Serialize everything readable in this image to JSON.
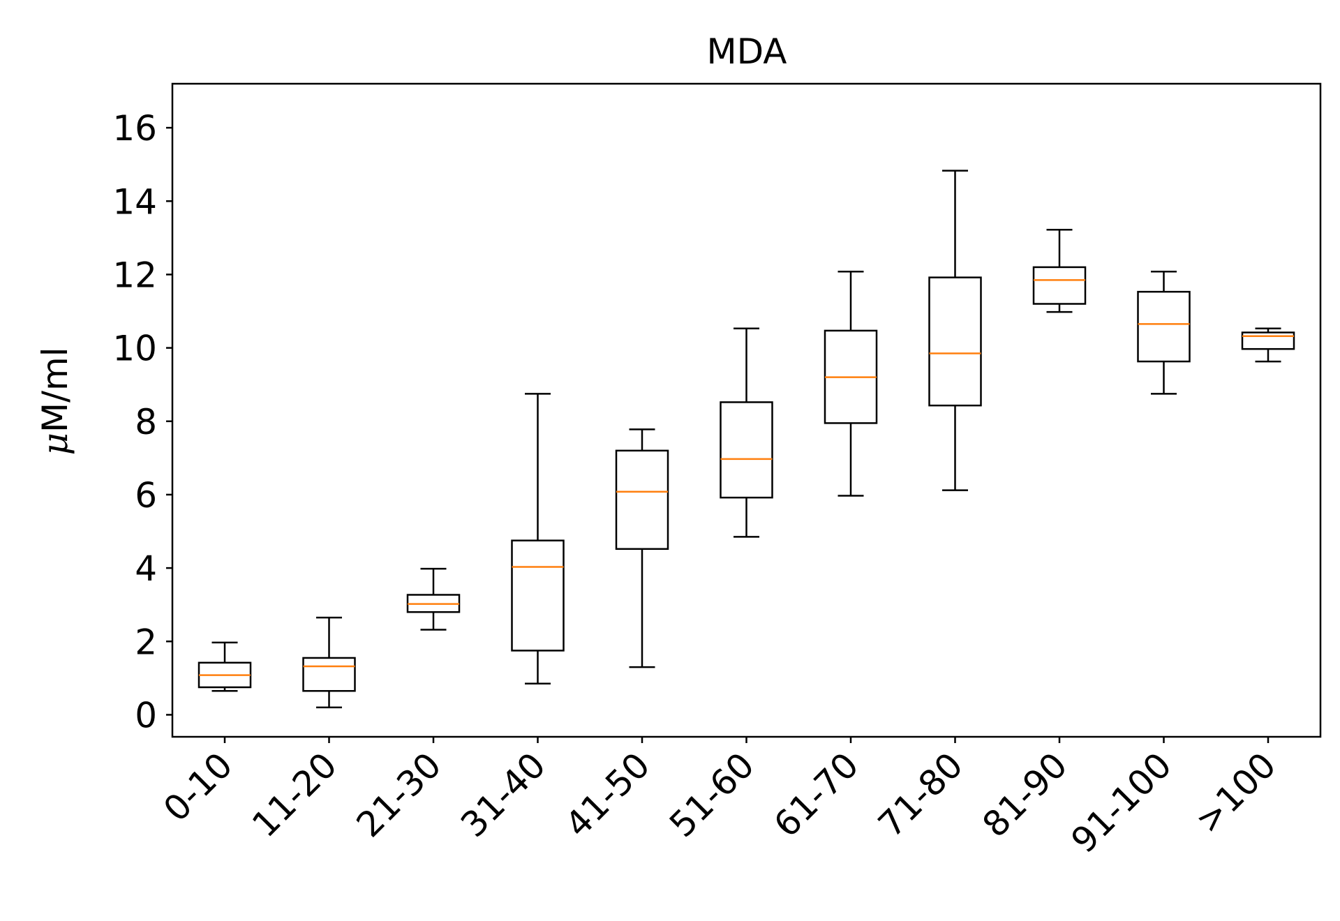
{
  "chart_data": {
    "type": "box",
    "title": "MDA",
    "xlabel": "",
    "ylabel_symbol": "μ",
    "ylabel_text": "M/ml",
    "ylim": [
      -0.6,
      17.2
    ],
    "yticks": [
      0,
      2,
      4,
      6,
      8,
      10,
      12,
      14,
      16
    ],
    "categories": [
      "0-10",
      "11-20",
      "21-30",
      "31-40",
      "41-50",
      "51-60",
      "61-70",
      "71-80",
      "81-90",
      "91-100",
      ">100"
    ],
    "boxes": [
      {
        "category": "0-10",
        "whislo": 0.65,
        "q1": 0.75,
        "med": 1.08,
        "q3": 1.42,
        "whishi": 1.97
      },
      {
        "category": "11-20",
        "whislo": 0.2,
        "q1": 0.65,
        "med": 1.32,
        "q3": 1.55,
        "whishi": 2.65
      },
      {
        "category": "21-30",
        "whislo": 2.32,
        "q1": 2.8,
        "med": 3.02,
        "q3": 3.27,
        "whishi": 3.98
      },
      {
        "category": "31-40",
        "whislo": 0.85,
        "q1": 1.75,
        "med": 4.03,
        "q3": 4.75,
        "whishi": 8.75
      },
      {
        "category": "41-50",
        "whislo": 1.3,
        "q1": 4.52,
        "med": 6.08,
        "q3": 7.2,
        "whishi": 7.78
      },
      {
        "category": "51-60",
        "whislo": 4.85,
        "q1": 5.92,
        "med": 6.97,
        "q3": 8.52,
        "whishi": 10.53
      },
      {
        "category": "61-70",
        "whislo": 5.97,
        "q1": 7.95,
        "med": 9.2,
        "q3": 10.47,
        "whishi": 12.08
      },
      {
        "category": "71-80",
        "whislo": 6.12,
        "q1": 8.43,
        "med": 9.85,
        "q3": 11.92,
        "whishi": 14.83
      },
      {
        "category": "81-90",
        "whislo": 10.98,
        "q1": 11.2,
        "med": 11.85,
        "q3": 12.2,
        "whishi": 13.22
      },
      {
        "category": "91-100",
        "whislo": 8.75,
        "q1": 9.63,
        "med": 10.65,
        "q3": 11.53,
        "whishi": 12.08
      },
      {
        "category": ">100",
        "whislo": 9.63,
        "q1": 9.97,
        "med": 10.32,
        "q3": 10.42,
        "whishi": 10.53
      }
    ],
    "colors": {
      "box": "#000000",
      "median": "#ff7f0e"
    },
    "grid": false,
    "legend": "none"
  }
}
